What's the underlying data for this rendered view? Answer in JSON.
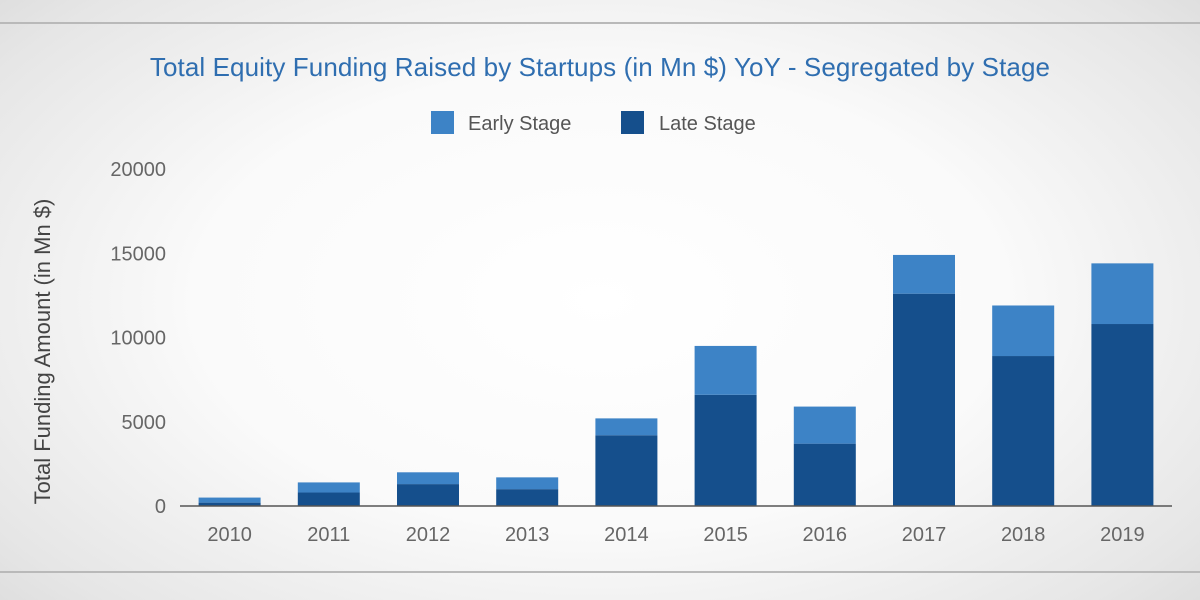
{
  "chart_data": {
    "type": "bar",
    "stacked": true,
    "title": "Total Equity Funding Raised by Startups (in Mn $) YoY - Segregated by Stage",
    "ylabel": "Total Funding Amount (in Mn $)",
    "xlabel": "",
    "categories": [
      "2010",
      "2011",
      "2012",
      "2013",
      "2014",
      "2015",
      "2016",
      "2017",
      "2018",
      "2019"
    ],
    "series": [
      {
        "name": "Late Stage",
        "color": "#154f8c",
        "values": [
          200,
          800,
          1300,
          1000,
          4200,
          6600,
          3700,
          12600,
          8900,
          10800
        ]
      },
      {
        "name": "Early Stage",
        "color": "#3d83c6",
        "values": [
          300,
          600,
          700,
          700,
          1000,
          2900,
          2200,
          2300,
          3000,
          3600
        ]
      }
    ],
    "ylim": [
      0,
      20000
    ],
    "yticks": [
      0,
      5000,
      10000,
      15000,
      20000
    ],
    "grid": false,
    "legend": {
      "placement": "top-center",
      "entries": [
        "Early Stage",
        "Late Stage"
      ]
    }
  }
}
